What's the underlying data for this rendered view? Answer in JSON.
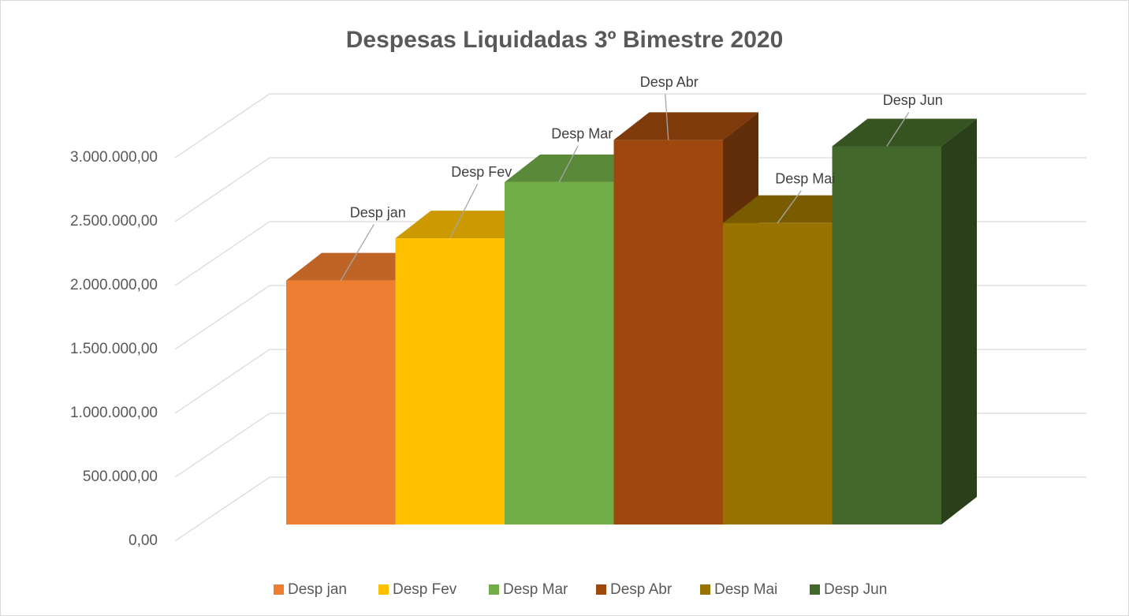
{
  "chart_data": {
    "type": "bar3d",
    "title": "Despesas Liquidadas 3º Bimestre 2020",
    "series": [
      {
        "name": "Desp jan",
        "color": "#ED7D31",
        "values": [
          1910000
        ]
      },
      {
        "name": "Desp Fev",
        "color": "#FFC000",
        "values": [
          2240000
        ]
      },
      {
        "name": "Desp Mar",
        "color": "#70AD47",
        "values": [
          2680000
        ]
      },
      {
        "name": "Desp Abr",
        "color": "#9E480E",
        "values": [
          3010000
        ]
      },
      {
        "name": "Desp Mai",
        "color": "#997300",
        "values": [
          2360000
        ]
      },
      {
        "name": "Desp Jun",
        "color": "#43682B",
        "values": [
          2960000
        ]
      }
    ],
    "ylim": [
      0,
      3000000
    ],
    "yticks": [
      {
        "value": 0,
        "label": "0,00"
      },
      {
        "value": 500000,
        "label": "500.000,00"
      },
      {
        "value": 1000000,
        "label": "1.000.000,00"
      },
      {
        "value": 1500000,
        "label": "1.500.000,00"
      },
      {
        "value": 2000000,
        "label": "2.000.000,00"
      },
      {
        "value": 2500000,
        "label": "2.500.000,00"
      },
      {
        "value": 3000000,
        "label": "3.000.000,00"
      }
    ],
    "grid": true,
    "legend": "bottom"
  }
}
